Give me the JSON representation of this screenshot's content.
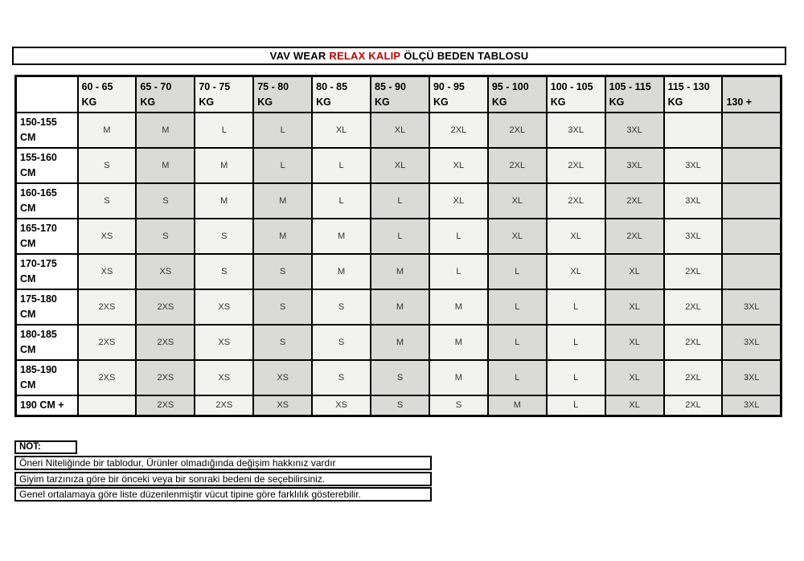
{
  "title": {
    "prefix": "VAV WEAR",
    "highlight": "RELAX KALIP",
    "suffix": "ÖLÇÜ BEDEN TABLOSU"
  },
  "table": {
    "columns": [
      {
        "label": "60 - 65",
        "unit": "KG"
      },
      {
        "label": "65 - 70",
        "unit": "KG"
      },
      {
        "label": "70 - 75",
        "unit": "KG"
      },
      {
        "label": "75 - 80",
        "unit": "KG"
      },
      {
        "label": "80 - 85",
        "unit": "KG"
      },
      {
        "label": "85 - 90",
        "unit": "KG"
      },
      {
        "label": "90 - 95",
        "unit": "KG"
      },
      {
        "label": "95 - 100",
        "unit": "KG"
      },
      {
        "label": "100 - 105",
        "unit": "KG"
      },
      {
        "label": "105 - 115",
        "unit": "KG"
      },
      {
        "label": "115 - 130",
        "unit": "KG"
      },
      {
        "label": "130 +",
        "unit": ""
      }
    ],
    "rows": [
      {
        "label": "150-155",
        "label2": "CM",
        "values": [
          "M",
          "M",
          "L",
          "L",
          "XL",
          "XL",
          "2XL",
          "2XL",
          "3XL",
          "3XL",
          "",
          ""
        ]
      },
      {
        "label": "155-160",
        "label2": "CM",
        "values": [
          "S",
          "M",
          "M",
          "L",
          "L",
          "XL",
          "XL",
          "2XL",
          "2XL",
          "3XL",
          "3XL",
          ""
        ]
      },
      {
        "label": "160-165",
        "label2": "CM",
        "values": [
          "S",
          "S",
          "M",
          "M",
          "L",
          "L",
          "XL",
          "XL",
          "2XL",
          "2XL",
          "3XL",
          ""
        ]
      },
      {
        "label": "165-170",
        "label2": "CM",
        "values": [
          "XS",
          "S",
          "S",
          "M",
          "M",
          "L",
          "L",
          "XL",
          "XL",
          "2XL",
          "3XL",
          ""
        ]
      },
      {
        "label": "170-175",
        "label2": "CM",
        "values": [
          "XS",
          "XS",
          "S",
          "S",
          "M",
          "M",
          "L",
          "L",
          "XL",
          "XL",
          "2XL",
          ""
        ]
      },
      {
        "label": "175-180",
        "label2": "CM",
        "values": [
          "2XS",
          "2XS",
          "XS",
          "S",
          "S",
          "M",
          "M",
          "L",
          "L",
          "XL",
          "2XL",
          "3XL"
        ]
      },
      {
        "label": "180-185",
        "label2": "CM",
        "values": [
          "2XS",
          "2XS",
          "XS",
          "S",
          "S",
          "M",
          "M",
          "L",
          "L",
          "XL",
          "2XL",
          "3XL"
        ]
      },
      {
        "label": "185-190",
        "label2": "CM",
        "values": [
          "2XS",
          "2XS",
          "XS",
          "XS",
          "S",
          "S",
          "M",
          "L",
          "L",
          "XL",
          "2XL",
          "3XL"
        ]
      },
      {
        "label": "190 CM +",
        "label2": "",
        "values": [
          "",
          "2XS",
          "2XS",
          "XS",
          "XS",
          "S",
          "S",
          "M",
          "L",
          "XL",
          "2XL",
          "3XL"
        ]
      }
    ]
  },
  "notes": {
    "label": "NOT:",
    "lines": [
      "Öneri Niteliğinde bir tablodur, Ürünler olmadığında değişim hakkınız vardır",
      "Giyim tarzınıza göre bir önceki veya bir sonraki bedeni de seçebilirsiniz.",
      "Genel ortalamaya göre liste düzenlenmiştir vücut tipine göre farklılık gösterebilir."
    ]
  },
  "colors": {
    "title_highlight": "#c00000",
    "shade_light": "#f2f2f0",
    "shade_dark": "#dadad8",
    "border": "#000000"
  }
}
